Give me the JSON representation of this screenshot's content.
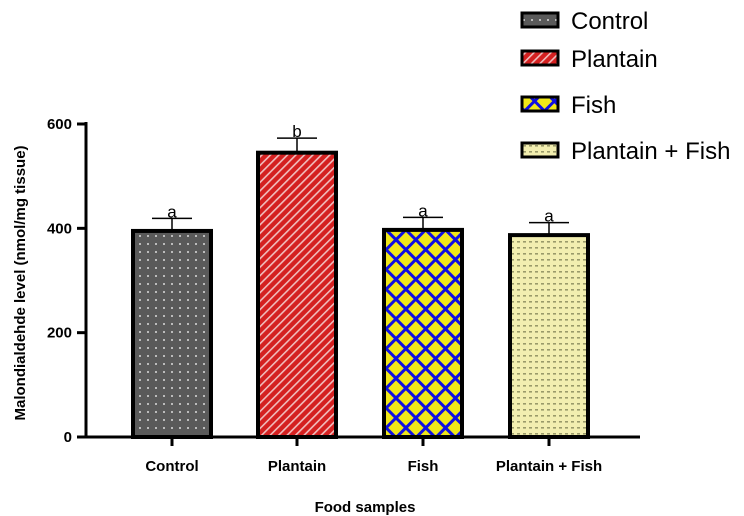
{
  "chart_data": {
    "type": "bar",
    "categories": [
      "Control",
      "Plantain",
      "Fish",
      "Plantain + Fish"
    ],
    "values": [
      395,
      545,
      397,
      387
    ],
    "errors": [
      24,
      28,
      24,
      24
    ],
    "significance": [
      "a",
      "b",
      "a",
      "a"
    ],
    "xlabel": "Food samples",
    "ylabel": "Malondialdehde level (nmol/mg tissue)",
    "ylim": [
      0,
      600
    ],
    "yticks": [
      0,
      200,
      400,
      600
    ],
    "grid": false,
    "legend_position": "top-right",
    "legend": [
      "Control",
      "Plantain",
      "Fish",
      "Plantain + Fish"
    ],
    "colors": {
      "Control": "#5a5a5a",
      "Plantain": "#d42020",
      "Fish": "#1010e0",
      "Plantain + Fish": "#f2eeb0"
    }
  }
}
